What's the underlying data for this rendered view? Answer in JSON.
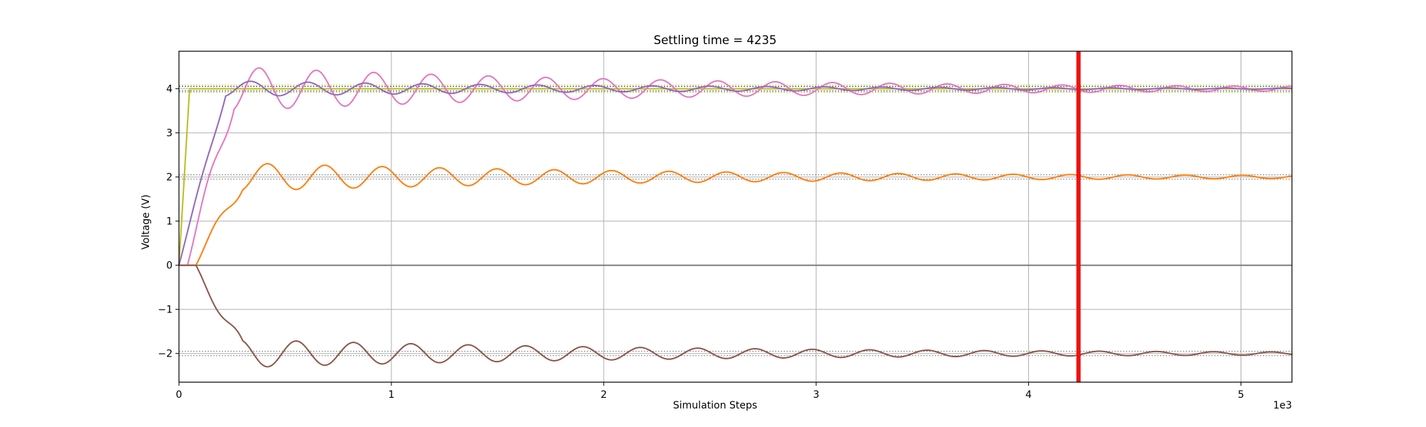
{
  "chart_data": {
    "type": "line",
    "title": "Settling time = 4235",
    "xlabel": "Simulation Steps",
    "ylabel": "Voltage (V)",
    "x_offset_label": "1e3",
    "xlim": [
      0,
      5240
    ],
    "ylim": [
      -2.65,
      4.85
    ],
    "grid": true,
    "x_ticks": [
      0,
      1000,
      2000,
      3000,
      4000,
      5000
    ],
    "x_tick_labels": [
      "0",
      "1",
      "2",
      "3",
      "4",
      "5"
    ],
    "y_ticks": [
      -2,
      -1,
      0,
      1,
      2,
      3,
      4
    ],
    "y_tick_labels": [
      "−2",
      "−1",
      "0",
      "1",
      "2",
      "3",
      "4"
    ],
    "settling_time": 4235,
    "tolerance_bands": [
      {
        "center": 4,
        "lower": 3.92,
        "upper": 4.08,
        "color": "#9acd32"
      },
      {
        "center": 4,
        "lower": 3.95,
        "upper": 4.05,
        "color": "#555555"
      },
      {
        "center": 2,
        "lower": 1.95,
        "upper": 2.05,
        "color": "#888888"
      },
      {
        "center": -2,
        "lower": -2.05,
        "upper": -1.95,
        "color": "#888888"
      }
    ],
    "series": [
      {
        "key": "source",
        "color": "#bcbd22",
        "kind": "step",
        "final": 4,
        "rise_start": 0,
        "rise_end": 50
      },
      {
        "key": "zero_line",
        "color": "#7f7f7f",
        "kind": "flat",
        "final": 0
      },
      {
        "key": "node_pink",
        "color": "#e377c2",
        "kind": "osc",
        "final": 4,
        "amplitude": 0.55,
        "decay": 0.00045,
        "period": 270,
        "start": 40,
        "sign": 1
      },
      {
        "key": "node_purple",
        "color": "#9467bd",
        "kind": "osc",
        "final": 4,
        "amplitude": 0.2,
        "decay": 0.0005,
        "period": 270,
        "start": 0,
        "sign": 1
      },
      {
        "key": "node_orange",
        "color": "#ff7f0e",
        "kind": "osc",
        "final": 2,
        "amplitude": 0.35,
        "decay": 0.00045,
        "period": 270,
        "start": 80,
        "sign": 1
      },
      {
        "key": "node_brown",
        "color": "#8c564b",
        "kind": "osc",
        "final": -2,
        "amplitude": 0.35,
        "decay": 0.00045,
        "period": 270,
        "start": 80,
        "sign": -1
      }
    ],
    "settling_line_color": "#ee1111"
  }
}
